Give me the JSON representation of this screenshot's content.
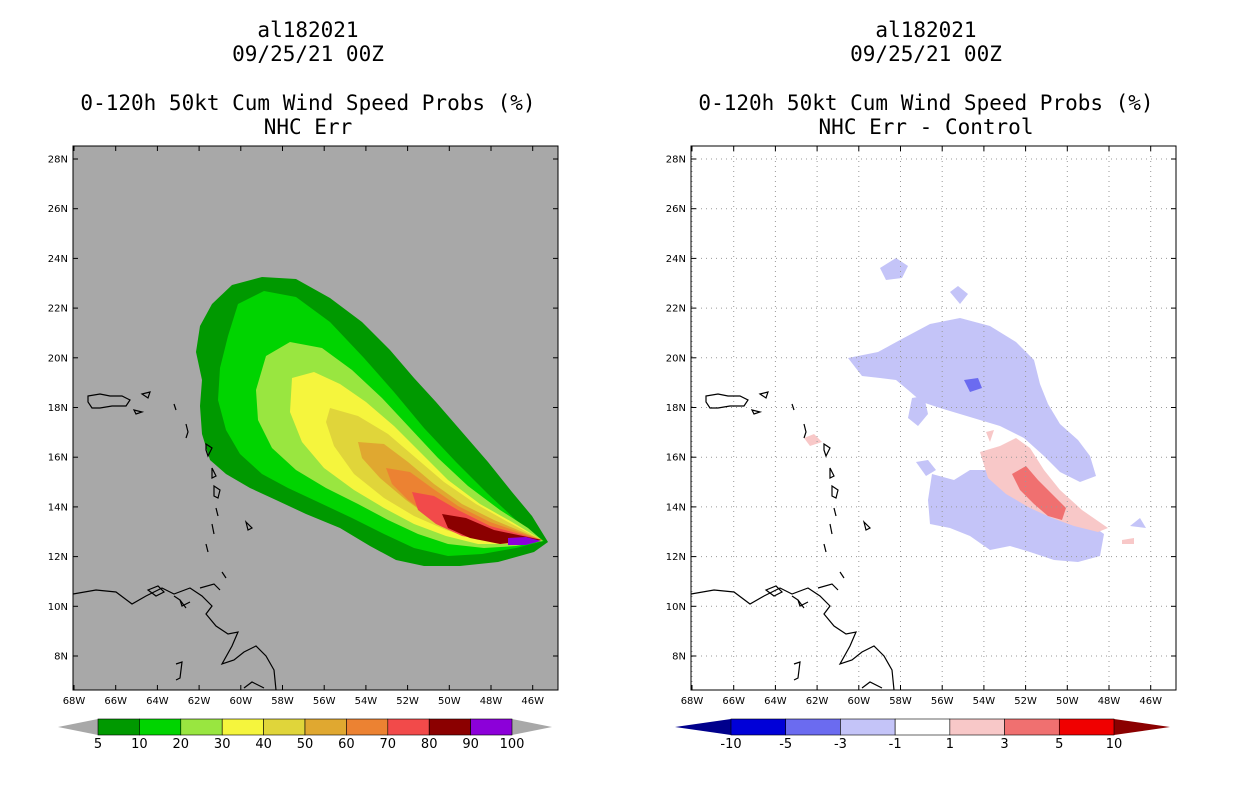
{
  "left": {
    "storm_id": "al182021",
    "datetime": "09/25/21 00Z",
    "product": "0-120h 50kt Cum Wind Speed Probs (%)",
    "subtitle": "NHC Err",
    "colorbar": {
      "labels": [
        "5",
        "10",
        "20",
        "30",
        "40",
        "50",
        "60",
        "70",
        "80",
        "90",
        "100"
      ],
      "colors": [
        "#009900",
        "#00d400",
        "#99e640",
        "#f5f53d",
        "#e0d53a",
        "#e0a830",
        "#ec8232",
        "#f24a4a",
        "#8b0000",
        "#8c00d9"
      ],
      "end_color": "#a8a8a8"
    },
    "background": "#a8a8a8"
  },
  "right": {
    "storm_id": "al182021",
    "datetime": "09/25/21 00Z",
    "product": "0-120h 50kt Cum Wind Speed Probs (%)",
    "subtitle": "NHC Err - Control",
    "colorbar": {
      "labels": [
        "-10",
        "-5",
        "-3",
        "-1",
        "1",
        "3",
        "5",
        "10"
      ],
      "colors": [
        "#0000d8",
        "#6b6bf0",
        "#c4c4f8",
        "#ffffff",
        "#f8c8c8",
        "#f07070",
        "#f00000"
      ],
      "end_low": "#00008c",
      "end_high": "#8b0000"
    },
    "background": "#ffffff"
  },
  "axes": {
    "lat_labels": [
      "28N",
      "26N",
      "24N",
      "22N",
      "20N",
      "18N",
      "16N",
      "14N",
      "12N",
      "10N",
      "8N"
    ],
    "lon_labels": [
      "68W",
      "66W",
      "64W",
      "62W",
      "60W",
      "58W",
      "56W",
      "54W",
      "52W",
      "50W",
      "48W",
      "46W"
    ]
  }
}
